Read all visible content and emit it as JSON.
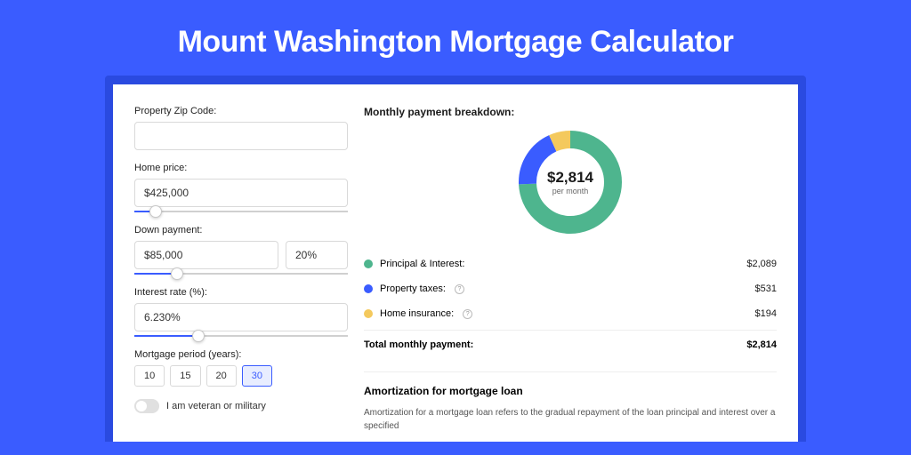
{
  "hero": {
    "title": "Mount Washington Mortgage Calculator"
  },
  "form": {
    "zip": {
      "label": "Property Zip Code:",
      "value": ""
    },
    "home_price": {
      "label": "Home price:",
      "value": "$425,000",
      "slider_pct": 10
    },
    "down_payment": {
      "label": "Down payment:",
      "value": "$85,000",
      "pct_value": "20%",
      "slider_pct": 20
    },
    "interest_rate": {
      "label": "Interest rate (%):",
      "value": "6.230%",
      "slider_pct": 30
    },
    "mortgage_period": {
      "label": "Mortgage period (years):",
      "options": [
        "10",
        "15",
        "20",
        "30"
      ],
      "active": "30"
    },
    "veteran": {
      "label": "I am veteran or military",
      "checked": false
    }
  },
  "breakdown": {
    "title": "Monthly payment breakdown:",
    "center_amount": "$2,814",
    "center_sub": "per month",
    "donut": {
      "radius": 48,
      "stroke": 20,
      "segments": [
        {
          "name": "principal",
          "color": "#4eb58e",
          "pct": 74.2
        },
        {
          "name": "taxes",
          "color": "#3a5cff",
          "pct": 18.9
        },
        {
          "name": "insurance",
          "color": "#f4c95d",
          "pct": 6.9
        }
      ]
    },
    "items": [
      {
        "label": "Principal & Interest:",
        "color": "#4eb58e",
        "value": "$2,089",
        "info": false
      },
      {
        "label": "Property taxes:",
        "color": "#3a5cff",
        "value": "$531",
        "info": true
      },
      {
        "label": "Home insurance:",
        "color": "#f4c95d",
        "value": "$194",
        "info": true
      }
    ],
    "total": {
      "label": "Total monthly payment:",
      "value": "$2,814"
    }
  },
  "amortization": {
    "title": "Amortization for mortgage loan",
    "text": "Amortization for a mortgage loan refers to the gradual repayment of the loan principal and interest over a specified"
  },
  "colors": {
    "page_bg": "#3a5cff",
    "shadow_bg": "#2a4ae0",
    "card_bg": "#ffffff",
    "green": "#4eb58e",
    "blue": "#3a5cff",
    "yellow": "#f4c95d"
  }
}
